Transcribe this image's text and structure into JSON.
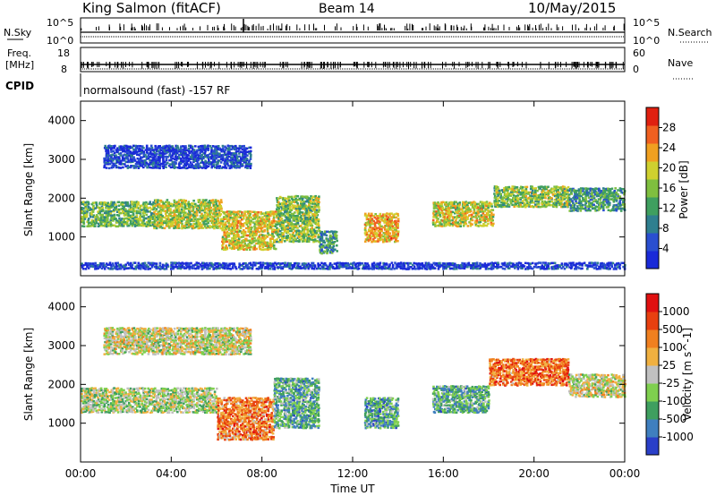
{
  "header": {
    "station": "King Salmon (fitACF)",
    "beam": "Beam 14",
    "date": "10/May/2015"
  },
  "labels": {
    "nsky": "N.Sky",
    "nsearch": "N.Search",
    "freq_line1": "Freq.",
    "freq_line2": "[MHz]",
    "nave": "Nave",
    "cpid": "CPID",
    "cpid_value": "normalsound (fast) -157 RF"
  },
  "noise_panel": {
    "left_top": "10^5",
    "left_bottom": "10^0",
    "right_top": "10^5",
    "right_bottom": "10^0"
  },
  "freq_panel": {
    "left_top": "18",
    "left_bottom": "8",
    "right_top": "60",
    "right_bottom": "0"
  },
  "colors": {
    "power": [
      "#1a2ad8",
      "#2a4fd0",
      "#2f7f8f",
      "#3f9f5f",
      "#7fbf3f",
      "#cfd02f",
      "#f0a020",
      "#f06020",
      "#e02010"
    ],
    "velocity": [
      "#2a3fc8",
      "#3f7fbf",
      "#3f9f5f",
      "#7fcf4f",
      "#c0c0c0",
      "#f0b040",
      "#f08020",
      "#e84010",
      "#e01010"
    ]
  },
  "chart_data": [
    {
      "type": "heatmap",
      "name": "power",
      "xlabel": "Time UT",
      "ylabel": "Slant Range [km]",
      "xlim": [
        0,
        24
      ],
      "ylim": [
        0,
        4500
      ],
      "yticks": [
        1000,
        2000,
        3000,
        4000
      ],
      "xtick_labels": [
        "00:00",
        "04:00",
        "08:00",
        "12:00",
        "16:00",
        "20:00",
        "00:00"
      ],
      "colorbar": {
        "label": "Power [dB]",
        "ticks": [
          "4",
          "8",
          "12",
          "16",
          "20",
          "24",
          "28"
        ]
      },
      "regions": [
        {
          "t0": 0.0,
          "t1": 3.2,
          "r0": 1300,
          "r1": 1950,
          "level": 0.45
        },
        {
          "t0": 3.2,
          "t1": 6.2,
          "r0": 1250,
          "r1": 2000,
          "level": 0.55
        },
        {
          "t0": 6.2,
          "t1": 8.6,
          "r0": 700,
          "r1": 1700,
          "level": 0.62
        },
        {
          "t0": 8.6,
          "t1": 10.5,
          "r0": 900,
          "r1": 2100,
          "level": 0.5
        },
        {
          "t0": 10.5,
          "t1": 11.3,
          "r0": 600,
          "r1": 1200,
          "level": 0.35
        },
        {
          "t0": 12.5,
          "t1": 14.0,
          "r0": 900,
          "r1": 1650,
          "level": 0.7
        },
        {
          "t0": 15.5,
          "t1": 18.2,
          "r0": 1300,
          "r1": 1950,
          "level": 0.6
        },
        {
          "t0": 18.2,
          "t1": 21.5,
          "r0": 1800,
          "r1": 2350,
          "level": 0.5
        },
        {
          "t0": 21.5,
          "t1": 24.0,
          "r0": 1700,
          "r1": 2300,
          "level": 0.35
        },
        {
          "t0": 1.0,
          "t1": 7.5,
          "r0": 2800,
          "r1": 3400,
          "level": 0.12
        },
        {
          "t0": 0.0,
          "t1": 24.0,
          "r0": 200,
          "r1": 380,
          "level": 0.1
        }
      ]
    },
    {
      "type": "heatmap",
      "name": "velocity",
      "xlabel": "Time UT",
      "ylabel": "Slant Range [km]",
      "xlim": [
        0,
        24
      ],
      "ylim": [
        0,
        4500
      ],
      "yticks": [
        1000,
        2000,
        3000,
        4000
      ],
      "xtick_labels": [
        "00:00",
        "04:00",
        "08:00",
        "12:00",
        "16:00",
        "20:00",
        "00:00"
      ],
      "colorbar": {
        "label": "Velocity [m s^-1]",
        "ticks": [
          "1000",
          "500",
          "100",
          "25",
          "-25",
          "-100",
          "-500",
          "-1000"
        ]
      },
      "regions": [
        {
          "t0": 0.0,
          "t1": 6.0,
          "r0": 1300,
          "r1": 1950,
          "level": 0.45
        },
        {
          "t0": 6.0,
          "t1": 8.5,
          "r0": 600,
          "r1": 1700,
          "level": 0.72
        },
        {
          "t0": 8.5,
          "t1": 10.5,
          "r0": 900,
          "r1": 2200,
          "level": 0.3
        },
        {
          "t0": 12.5,
          "t1": 14.0,
          "r0": 900,
          "r1": 1700,
          "level": 0.28
        },
        {
          "t0": 15.5,
          "t1": 18.0,
          "r0": 1300,
          "r1": 2000,
          "level": 0.3
        },
        {
          "t0": 18.0,
          "t1": 21.5,
          "r0": 2000,
          "r1": 2700,
          "level": 0.75
        },
        {
          "t0": 21.5,
          "t1": 24.0,
          "r0": 1700,
          "r1": 2300,
          "level": 0.5
        },
        {
          "t0": 1.0,
          "t1": 7.5,
          "r0": 2800,
          "r1": 3500,
          "level": 0.5
        }
      ]
    }
  ]
}
